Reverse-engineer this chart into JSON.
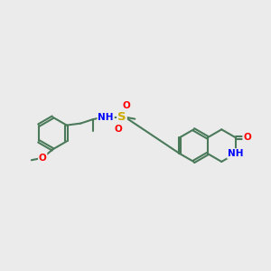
{
  "background_color": "#ebebeb",
  "bond_color": "#4a7a5a",
  "bond_width": 1.5,
  "atom_colors": {
    "O": "#ff0000",
    "N": "#0000ff",
    "S": "#ccaa00",
    "C": "#4a7a5a"
  },
  "font_size_atom": 7.5,
  "figsize": [
    3.0,
    3.0
  ],
  "dpi": 100,
  "xlim": [
    0,
    12
  ],
  "ylim": [
    2,
    9
  ]
}
